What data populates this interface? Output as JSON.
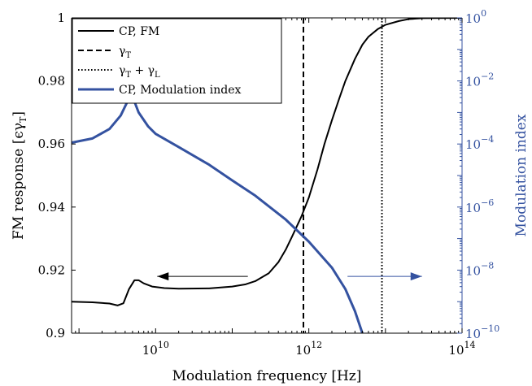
{
  "chart_data": {
    "type": "line",
    "title": "",
    "xlabel": "Modulation frequency [Hz]",
    "xscale": "log",
    "xlim": [
      800000000.0,
      100000000000000.0
    ],
    "x_ticks": [
      {
        "value": 10000000000.0,
        "base": "10",
        "exp": "10"
      },
      {
        "value": 1000000000000.0,
        "base": "10",
        "exp": "12"
      },
      {
        "value": 100000000000000.0,
        "base": "10",
        "exp": "14"
      }
    ],
    "ylabel_left": "FM response [ϵγ",
    "ylabel_left_sub": "T",
    "ylabel_left_end": "]",
    "ylim_left": [
      0.9,
      1.0
    ],
    "y_ticks_left": [
      "0.9",
      "0.92",
      "0.94",
      "0.96",
      "0.98",
      "1"
    ],
    "ylabel_right": "Modulation index",
    "yscale_right": "log",
    "ylim_right": [
      1e-10,
      1
    ],
    "y_ticks_right": [
      {
        "value": 1e-10,
        "base": "10",
        "exp": "−10"
      },
      {
        "value": 1e-08,
        "base": "10",
        "exp": "−8"
      },
      {
        "value": 1e-06,
        "base": "10",
        "exp": "−6"
      },
      {
        "value": 0.0001,
        "base": "10",
        "exp": "−4"
      },
      {
        "value": 0.01,
        "base": "10",
        "exp": "−2"
      },
      {
        "value": 1,
        "base": "10",
        "exp": "0"
      }
    ],
    "grid": false,
    "legend_position": "top-left",
    "series": [
      {
        "name": "CP, FM",
        "axis": "left",
        "color": "#000000",
        "style": "solid",
        "points": [
          [
            800000000.0,
            0.91
          ],
          [
            1500000000.0,
            0.9098
          ],
          [
            2500000000.0,
            0.9094
          ],
          [
            3200000000.0,
            0.9088
          ],
          [
            3800000000.0,
            0.9095
          ],
          [
            4500000000.0,
            0.914
          ],
          [
            5300000000.0,
            0.9168
          ],
          [
            6000000000.0,
            0.9168
          ],
          [
            7000000000.0,
            0.9158
          ],
          [
            9000000000.0,
            0.9148
          ],
          [
            13000000000.0,
            0.9143
          ],
          [
            20000000000.0,
            0.9141
          ],
          [
            50000000000.0,
            0.9142
          ],
          [
            100000000000.0,
            0.9148
          ],
          [
            150000000000.0,
            0.9155
          ],
          [
            200000000000.0,
            0.9165
          ],
          [
            300000000000.0,
            0.919
          ],
          [
            400000000000.0,
            0.9225
          ],
          [
            500000000000.0,
            0.9265
          ],
          [
            600000000000.0,
            0.9305
          ],
          [
            800000000000.0,
            0.937
          ],
          [
            1000000000000.0,
            0.943
          ],
          [
            1300000000000.0,
            0.952
          ],
          [
            1600000000000.0,
            0.96
          ],
          [
            2000000000000.0,
            0.9675
          ],
          [
            2500000000000.0,
            0.9745
          ],
          [
            3000000000000.0,
            0.98
          ],
          [
            4000000000000.0,
            0.987
          ],
          [
            5000000000000.0,
            0.9915
          ],
          [
            6000000000000.0,
            0.994
          ],
          [
            8000000000000.0,
            0.9965
          ],
          [
            10000000000000.0,
            0.9978
          ],
          [
            15000000000000.0,
            0.999
          ],
          [
            20000000000000.0,
            0.9996
          ],
          [
            30000000000000.0,
            0.9999
          ],
          [
            100000000000000.0,
            1.0
          ]
        ]
      },
      {
        "name": "γ",
        "name_sub": "T",
        "axis": "none",
        "color": "#000000",
        "style": "dashed",
        "vertical_at": 850000000000.0
      },
      {
        "name": "γ",
        "name_sub": "T",
        "name_mid": " + γ",
        "name_sub2": "L",
        "axis": "none",
        "color": "#000000",
        "style": "dotted",
        "vertical_at": 9000000000000.0
      },
      {
        "name": "CP, Modulation index",
        "axis": "right",
        "color": "#3452a0",
        "style": "solid",
        "points": [
          [
            800000000.0,
            0.00011
          ],
          [
            1500000000.0,
            0.00015
          ],
          [
            2500000000.0,
            0.0003
          ],
          [
            3500000000.0,
            0.0008
          ],
          [
            4200000000.0,
            0.002
          ],
          [
            4700000000.0,
            0.0032
          ],
          [
            5300000000.0,
            0.0022
          ],
          [
            6000000000.0,
            0.001
          ],
          [
            8000000000.0,
            0.00036
          ],
          [
            10000000000.0,
            0.00021
          ],
          [
            20000000000.0,
            8e-05
          ],
          [
            50000000000.0,
            2.2e-05
          ],
          [
            100000000000.0,
            7e-06
          ],
          [
            200000000000.0,
            2.3e-06
          ],
          [
            500000000000.0,
            4e-07
          ],
          [
            1000000000000.0,
            8e-08
          ],
          [
            2000000000000.0,
            1.2e-08
          ],
          [
            3000000000000.0,
            2.5e-09
          ],
          [
            4000000000000.0,
            5e-10
          ],
          [
            5000000000000.0,
            1e-10
          ]
        ]
      }
    ],
    "annotations": [
      {
        "type": "arrow",
        "direction": "left",
        "axis": "left",
        "color": "#000000",
        "x_from": 160000000000.0,
        "x_to": 10500000000.0,
        "y": 0.918
      },
      {
        "type": "arrow",
        "direction": "right",
        "axis": "left",
        "color": "#3452a0",
        "x_from": 3200000000000.0,
        "x_to": 30000000000000.0,
        "y": 0.918
      }
    ]
  }
}
